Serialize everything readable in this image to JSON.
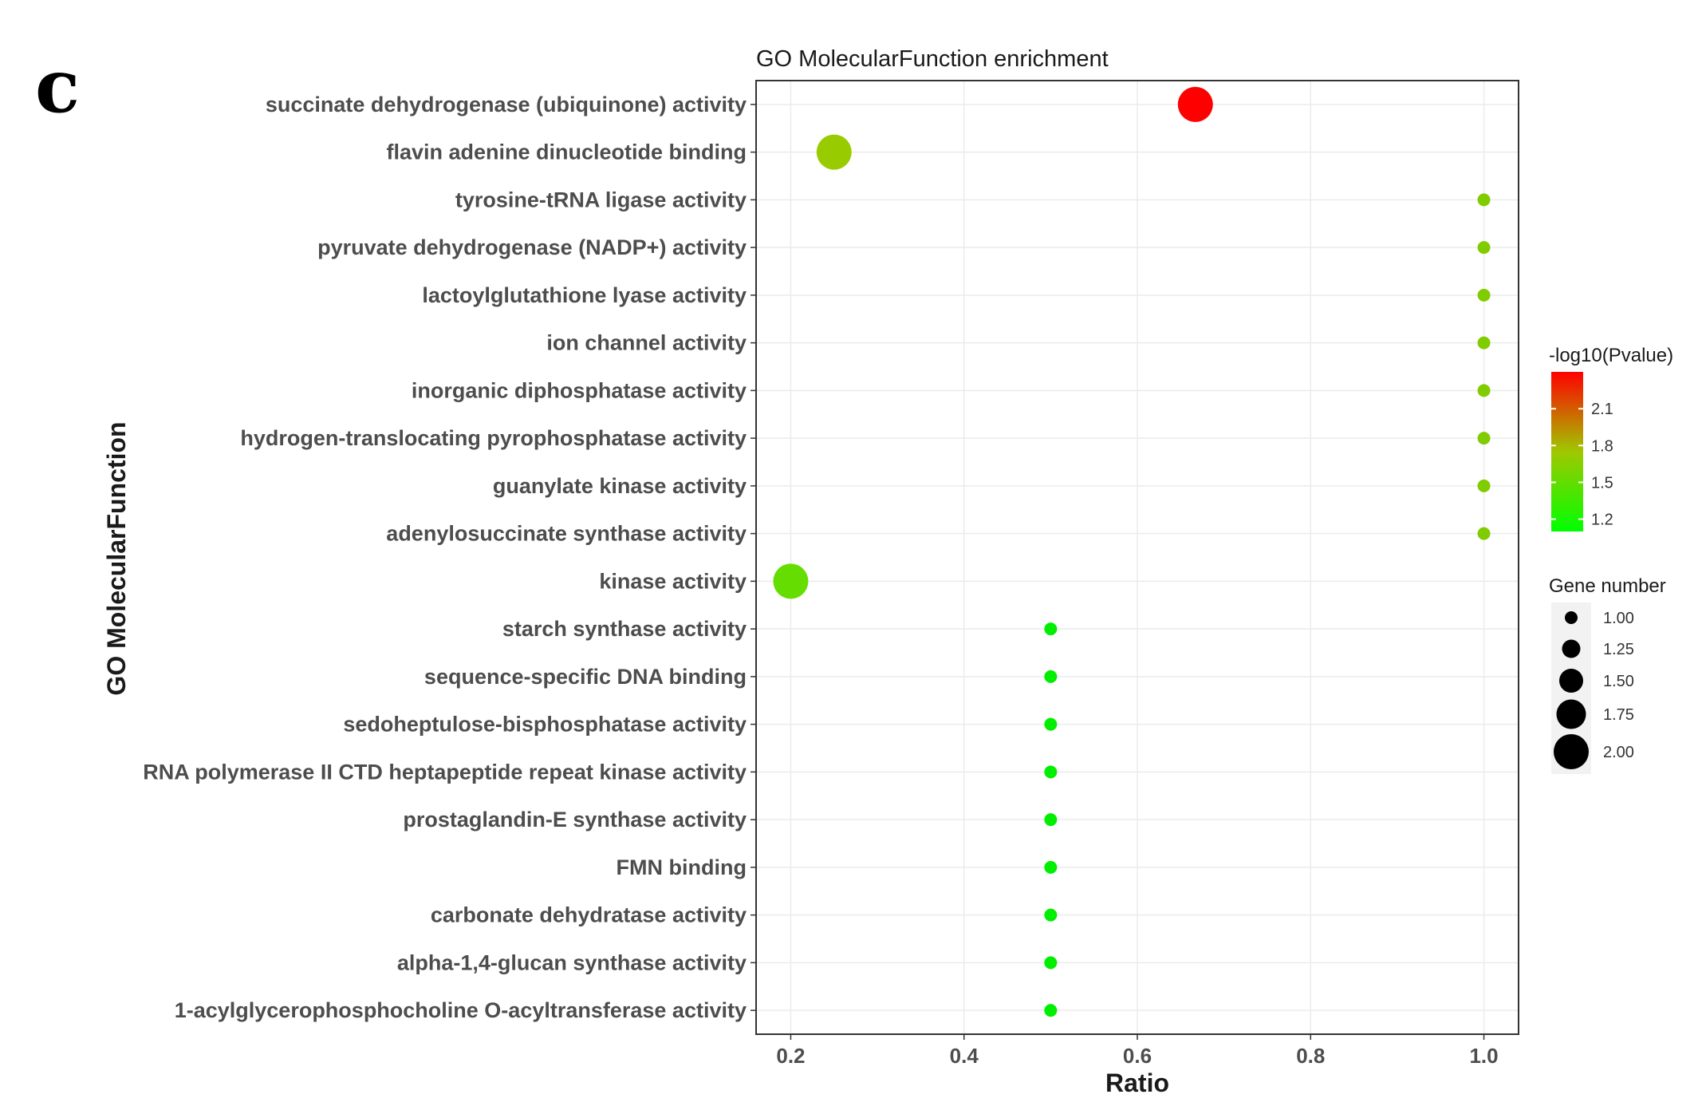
{
  "panel_letter": "c",
  "chart_data": {
    "type": "scatter",
    "title": "GO MolecularFunction enrichment",
    "xlabel": "Ratio",
    "ylabel": "GO MolecularFunction",
    "xlim": [
      0.16,
      1.04
    ],
    "xticks": [
      0.2,
      0.4,
      0.6,
      0.8,
      1.0
    ],
    "xtick_labels": [
      "0.2",
      "0.4",
      "0.6",
      "0.8",
      "1.0"
    ],
    "grid": true,
    "legend_position": "right",
    "color_legend": {
      "title": "-log10(Pvalue)",
      "ticks": [
        2.1,
        1.8,
        1.5,
        1.2
      ],
      "tick_labels": [
        "2.1",
        "1.8",
        "1.5",
        "1.2"
      ],
      "range": [
        1.1,
        2.4
      ],
      "low_color": "#00ff00",
      "high_color": "#ff0000"
    },
    "size_legend": {
      "title": "Gene number",
      "values": [
        1.0,
        1.25,
        1.5,
        1.75,
        2.0
      ],
      "labels": [
        "1.00",
        "1.25",
        "1.50",
        "1.75",
        "2.00"
      ]
    },
    "points": [
      {
        "term": "succinate dehydrogenase (ubiquinone) activity",
        "ratio": 0.667,
        "gene_number": 2,
        "neg_log10_p": 2.38,
        "color": "#ff0000"
      },
      {
        "term": "flavin adenine dinucleotide binding",
        "ratio": 0.25,
        "gene_number": 2,
        "neg_log10_p": 1.6,
        "color": "#99cc00"
      },
      {
        "term": "tyrosine-tRNA ligase activity",
        "ratio": 1.0,
        "gene_number": 1,
        "neg_log10_p": 1.55,
        "color": "#80cc00"
      },
      {
        "term": "pyruvate dehydrogenase (NADP+) activity",
        "ratio": 1.0,
        "gene_number": 1,
        "neg_log10_p": 1.55,
        "color": "#80cc00"
      },
      {
        "term": "lactoylglutathione lyase activity",
        "ratio": 1.0,
        "gene_number": 1,
        "neg_log10_p": 1.55,
        "color": "#80cc00"
      },
      {
        "term": "ion channel activity",
        "ratio": 1.0,
        "gene_number": 1,
        "neg_log10_p": 1.55,
        "color": "#80cc00"
      },
      {
        "term": "inorganic diphosphatase activity",
        "ratio": 1.0,
        "gene_number": 1,
        "neg_log10_p": 1.55,
        "color": "#80cc00"
      },
      {
        "term": "hydrogen-translocating pyrophosphatase activity",
        "ratio": 1.0,
        "gene_number": 1,
        "neg_log10_p": 1.55,
        "color": "#80cc00"
      },
      {
        "term": "guanylate kinase activity",
        "ratio": 1.0,
        "gene_number": 1,
        "neg_log10_p": 1.55,
        "color": "#80cc00"
      },
      {
        "term": "adenylosuccinate synthase activity",
        "ratio": 1.0,
        "gene_number": 1,
        "neg_log10_p": 1.55,
        "color": "#80cc00"
      },
      {
        "term": "kinase activity",
        "ratio": 0.2,
        "gene_number": 2,
        "neg_log10_p": 1.4,
        "color": "#66dd00"
      },
      {
        "term": "starch synthase activity",
        "ratio": 0.5,
        "gene_number": 1,
        "neg_log10_p": 1.15,
        "color": "#00ee00"
      },
      {
        "term": "sequence-specific DNA binding",
        "ratio": 0.5,
        "gene_number": 1,
        "neg_log10_p": 1.15,
        "color": "#00ee00"
      },
      {
        "term": "sedoheptulose-bisphosphatase activity",
        "ratio": 0.5,
        "gene_number": 1,
        "neg_log10_p": 1.15,
        "color": "#00ee00"
      },
      {
        "term": "RNA polymerase II CTD heptapeptide repeat kinase activity",
        "ratio": 0.5,
        "gene_number": 1,
        "neg_log10_p": 1.15,
        "color": "#00ee00"
      },
      {
        "term": "prostaglandin-E synthase activity",
        "ratio": 0.5,
        "gene_number": 1,
        "neg_log10_p": 1.15,
        "color": "#00ee00"
      },
      {
        "term": "FMN binding",
        "ratio": 0.5,
        "gene_number": 1,
        "neg_log10_p": 1.15,
        "color": "#00ee00"
      },
      {
        "term": "carbonate dehydratase activity",
        "ratio": 0.5,
        "gene_number": 1,
        "neg_log10_p": 1.15,
        "color": "#00ee00"
      },
      {
        "term": "alpha-1,4-glucan synthase activity",
        "ratio": 0.5,
        "gene_number": 1,
        "neg_log10_p": 1.15,
        "color": "#00ee00"
      },
      {
        "term": "1-acylglycerophosphocholine O-acyltransferase activity",
        "ratio": 0.5,
        "gene_number": 1,
        "neg_log10_p": 1.15,
        "color": "#00ee00"
      }
    ]
  }
}
